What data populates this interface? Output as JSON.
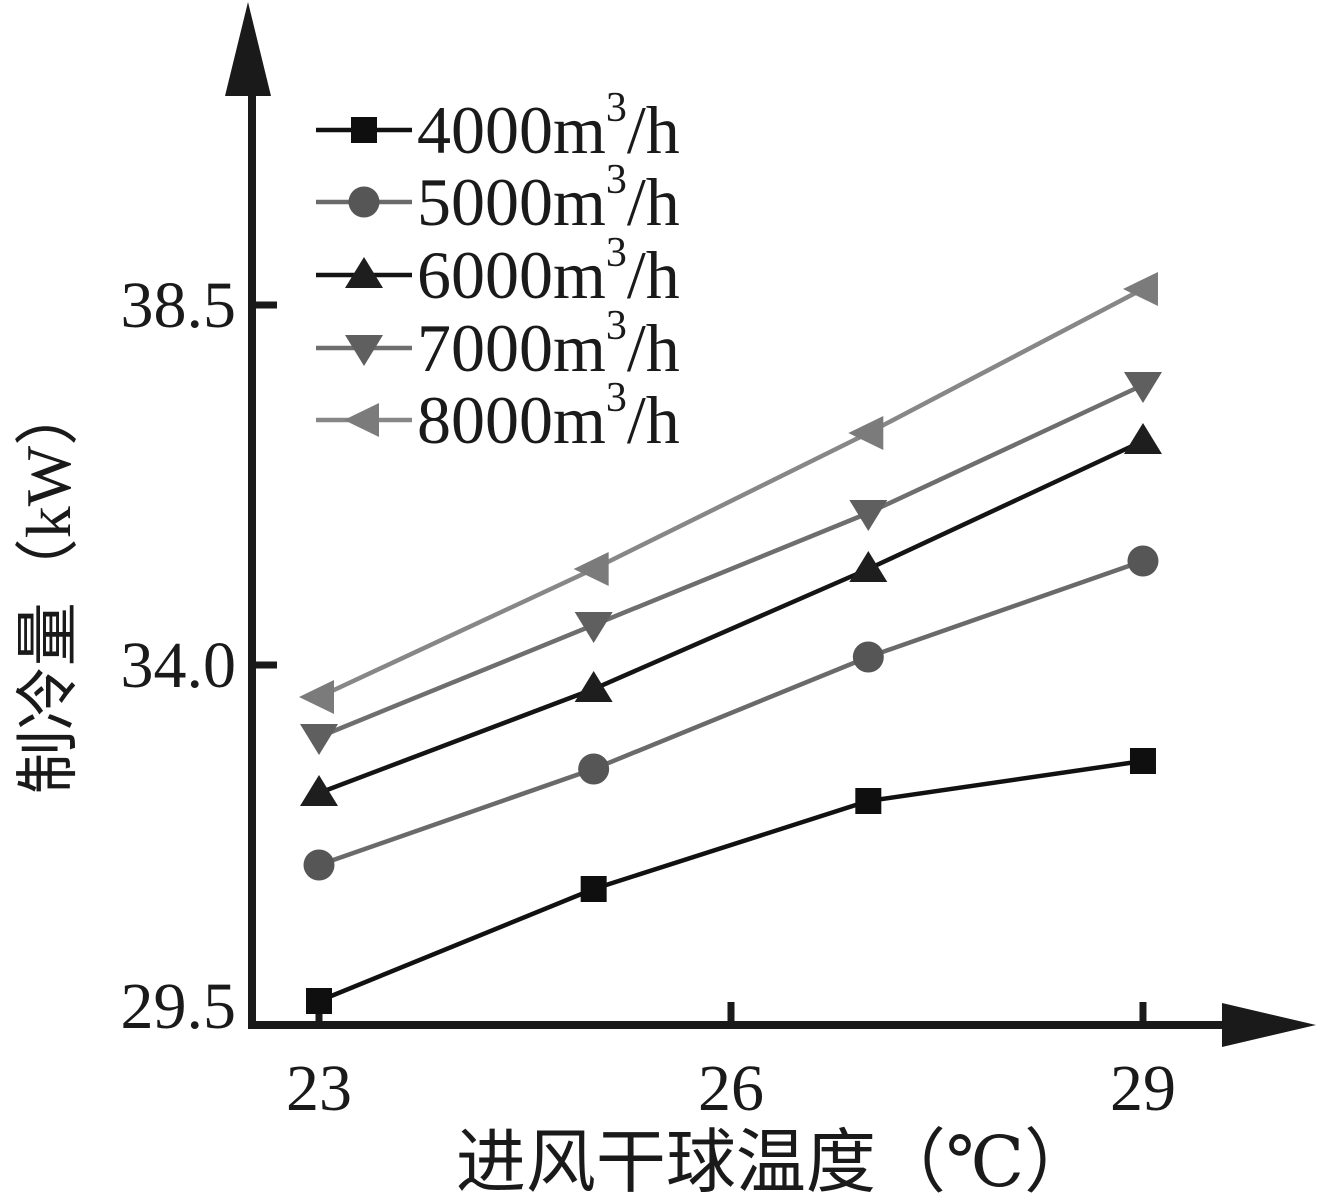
{
  "figure": {
    "background": "#ffffff",
    "axis_color": "#1a1a1a"
  },
  "chart_data": {
    "type": "line",
    "title": "",
    "xlabel": "进风干球温度（℃）",
    "ylabel": "制冷量（kW）",
    "x": [
      23,
      25,
      27,
      29
    ],
    "x_tick_labels": [
      "23",
      "26",
      "29"
    ],
    "x_tick_values": [
      23,
      26,
      29
    ],
    "y_tick_labels": [
      "38.5",
      "34.0",
      "29.5"
    ],
    "y_tick_values": [
      38.5,
      34.0,
      29.5
    ],
    "xlim": [
      22.5,
      30.2
    ],
    "ylim": [
      29.5,
      41.5
    ],
    "grid": false,
    "legend_position": "top-left-inside",
    "series": [
      {
        "name": "4000m³/h",
        "label_main": "4000m",
        "label_sup": "3",
        "label_suffix": "/h",
        "marker": "square",
        "line_color": "#111111",
        "marker_color": "#0f0f0f",
        "values": [
          29.8,
          31.2,
          32.3,
          32.8
        ]
      },
      {
        "name": "5000m³/h",
        "label_main": "5000m",
        "label_sup": "3",
        "label_suffix": "/h",
        "marker": "circle",
        "line_color": "#6a6a6a",
        "marker_color": "#565656",
        "values": [
          31.5,
          32.7,
          34.1,
          35.3
        ]
      },
      {
        "name": "6000m³/h",
        "label_main": "6000m",
        "label_sup": "3",
        "label_suffix": "/h",
        "marker": "triangle-up",
        "line_color": "#141414",
        "marker_color": "#1e1e1e",
        "values": [
          32.4,
          33.7,
          35.2,
          36.8
        ]
      },
      {
        "name": "7000m³/h",
        "label_main": "7000m",
        "label_sup": "3",
        "label_suffix": "/h",
        "marker": "triangle-down",
        "line_color": "#6e6e6e",
        "marker_color": "#5f5f5f",
        "values": [
          33.1,
          34.5,
          35.9,
          37.5
        ]
      },
      {
        "name": "8000m³/h",
        "label_main": "8000m",
        "label_sup": "3",
        "label_suffix": "/h",
        "marker": "triangle-left",
        "line_color": "#878787",
        "marker_color": "#7b7b7b",
        "values": [
          33.6,
          35.2,
          36.9,
          38.7
        ]
      }
    ]
  }
}
